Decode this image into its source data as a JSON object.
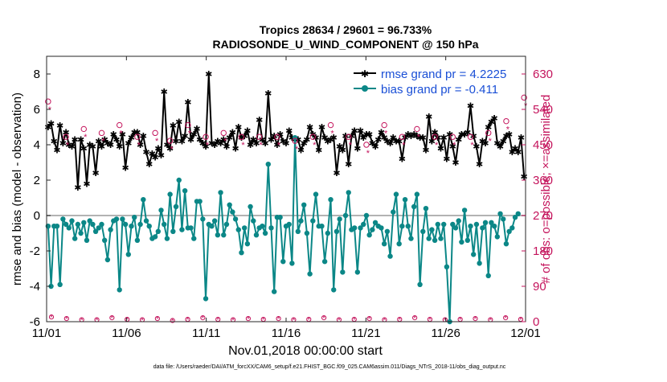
{
  "chart_data": {
    "type": "line",
    "title": "Tropics 28634 / 29601 = 96.733%",
    "subtitle": "RADIOSONDE_U_WIND_COMPONENT @ 150 hPa",
    "xlabel": "Nov.01,2018 00:00:00 start",
    "ylabel_left": "rmse and bias (model - observation)",
    "ylabel_right": "# of obs: o=possible; ×=assimilated",
    "footer": "data file: /Users/raeder/DAI/ATM_forcXX/CAM6_setup/f.e21.FHIST_BGC.f09_025.CAM6assim.011/Diags_NTrS_2018-11/obs_diag_output.nc",
    "xlim": [
      0,
      30
    ],
    "ylim_left": [
      -6,
      9
    ],
    "ylim_right": [
      0,
      675
    ],
    "x_ticks": [
      0,
      5,
      10,
      15,
      20,
      25,
      30
    ],
    "x_tick_labels": [
      "11/01",
      "11/06",
      "11/11",
      "11/16",
      "11/21",
      "11/26",
      "12/01"
    ],
    "y_ticks_left": [
      -6,
      -4,
      -2,
      0,
      2,
      4,
      6,
      8
    ],
    "y_tick_labels_left": [
      "-6",
      "-4",
      "-2",
      "0",
      "2",
      "4",
      "6",
      "8"
    ],
    "y_ticks_right": [
      0,
      90,
      180,
      270,
      360,
      450,
      540,
      630
    ],
    "y_tick_labels_right": [
      "0",
      "90",
      "180",
      "270",
      "360",
      "450",
      "540",
      "630"
    ],
    "legend": [
      {
        "name": "rmse grand pr = 4.2225",
        "color": "#000000"
      },
      {
        "name": "bias grand pr = -0.411",
        "color": "#0b8787"
      }
    ],
    "legend_position": "top-right",
    "series": [
      {
        "name": "rmse",
        "color": "#000000",
        "values": [
          5.0,
          5.2,
          4.2,
          3.7,
          5.1,
          4.1,
          4.7,
          4.0,
          3.9,
          4.3,
          1.6,
          4.3,
          3.8,
          1.8,
          4.0,
          3.9,
          2.4,
          4.2,
          3.9,
          4.3,
          4.1,
          4.0,
          4.6,
          4.3,
          3.9,
          4.6,
          2.7,
          4.1,
          4.4,
          4.7,
          4.7,
          4.0,
          4.5,
          3.6,
          2.9,
          3.5,
          3.3,
          3.8,
          3.4,
          7.0,
          4.0,
          3.8,
          5.1,
          4.2,
          5.3,
          4.2,
          4.5,
          6.4,
          4.3,
          4.6,
          4.9,
          4.3,
          4.1,
          3.9,
          8.0,
          4.1,
          4.0,
          4.2,
          4.1,
          4.3,
          3.9,
          4.4,
          4.7,
          3.8,
          5.0,
          4.4,
          4.5,
          4.8,
          4.0,
          4.3,
          4.1,
          5.4,
          4.3,
          4.1,
          6.9,
          4.3,
          4.5,
          4.0,
          4.6,
          4.2,
          4.1,
          4.8,
          4.4,
          4.3,
          4.3,
          3.7,
          4.1,
          4.3,
          5.0,
          4.6,
          4.4,
          3.7,
          5.0,
          4.4,
          4.2,
          4.3,
          4.4,
          2.4,
          3.9,
          3.7,
          4.5,
          2.9,
          4.5,
          4.8,
          3.8,
          4.8,
          4.4,
          4.6,
          4.6,
          4.1,
          3.9,
          4.3,
          4.7,
          4.4,
          4.2,
          4.1,
          4.4,
          4.2,
          4.2,
          3.2,
          4.4,
          4.6,
          4.5,
          4.6,
          4.5,
          4.4,
          4.4,
          3.7,
          5.6,
          4.2,
          4.7,
          4.4,
          3.8,
          4.4,
          3.2,
          4.6,
          3.9,
          3.0,
          4.3,
          4.6,
          4.6,
          4.7,
          6.2,
          4.5,
          3.9,
          2.9,
          4.2,
          4.1,
          5.0,
          5.3,
          5.5,
          4.1,
          3.9,
          4.2,
          4.5,
          4.6,
          3.6,
          3.8,
          3.6,
          4.4,
          2.2
        ]
      },
      {
        "name": "bias",
        "color": "#0b8787",
        "values": [
          -0.6,
          -4.0,
          -0.6,
          -0.6,
          -3.9,
          -0.2,
          -0.5,
          -0.7,
          -0.3,
          -1.3,
          -0.5,
          -1.0,
          -0.4,
          -1.4,
          -0.3,
          -0.5,
          -0.9,
          -0.7,
          -0.5,
          -1.4,
          -2.5,
          -0.8,
          -0.3,
          -0.2,
          -4.2,
          -0.2,
          -0.5,
          -2.2,
          -0.6,
          -0.1,
          -1.4,
          -0.5,
          0.9,
          -0.3,
          -0.6,
          -1.3,
          -1.2,
          -0.9,
          0.3,
          -0.5,
          -1.3,
          1.2,
          -0.9,
          0.5,
          2.0,
          -0.8,
          1.4,
          -0.7,
          -0.7,
          -1.3,
          0.8,
          0.8,
          -0.2,
          -4.7,
          -0.5,
          -0.6,
          -0.3,
          -1.1,
          1.3,
          -1.1,
          -0.5,
          0.6,
          0.2,
          -0.2,
          -0.8,
          -2.1,
          -0.7,
          -1.6,
          0.5,
          -0.3,
          -1.1,
          -0.7,
          -0.6,
          -1.0,
          2.9,
          -0.7,
          -4.3,
          -0.1,
          -0.1,
          -2.6,
          -0.6,
          -0.5,
          -2.7,
          4.4,
          -0.9,
          -0.3,
          0.6,
          -1.0,
          -3.3,
          -0.3,
          1.2,
          -0.6,
          -0.6,
          -2.6,
          -1.0,
          0.9,
          -4.2,
          -0.9,
          -0.2,
          -3.2,
          0.0,
          1.3,
          -0.8,
          -0.7,
          -3.2,
          -0.7,
          -0.5,
          0.0,
          -1.1,
          -0.8,
          -0.4,
          -0.6,
          -0.7,
          -1.6,
          -0.9,
          -2.3,
          0.2,
          1.2,
          -1.6,
          -0.6,
          0.9,
          -0.6,
          -1.3,
          0.5,
          1.2,
          -3.9,
          -0.9,
          0.4,
          -1.3,
          -0.8,
          -1.4,
          -0.5,
          -1.3,
          -0.5,
          -2.9,
          -6.0,
          -0.5,
          -0.7,
          -0.3,
          -1.5,
          0.3,
          -1.4,
          -0.6,
          -2.2,
          -0.5,
          -2.7,
          -0.7,
          -0.4,
          -3.4,
          -0.4,
          -0.6,
          -1.2,
          0.1,
          -0.2,
          -1.6,
          -0.9,
          -0.7,
          -0.1,
          0.1
        ]
      },
      {
        "name": "# of obs possible",
        "color": "#c4145c",
        "values": [
          560,
          530,
          440,
          460,
          520,
          480,
          470,
          480,
          500,
          500,
          510,
          500,
          490,
          470,
          470,
          520,
          530,
          510,
          480,
          450,
          470,
          480,
          470,
          470,
          500,
          470,
          490,
          470,
          460,
          510,
          470,
          500,
          480,
          500,
          440,
          390,
          480,
          480,
          470,
          470,
          530,
          460,
          510,
          480,
          470,
          470,
          520,
          500,
          460,
          470,
          500,
          500,
          480,
          470,
          420,
          470,
          520,
          470,
          520,
          480,
          460,
          470,
          480,
          480,
          470,
          470,
          470,
          470,
          470,
          500,
          470,
          470,
          540,
          500,
          520,
          480,
          480,
          470,
          460,
          500,
          470,
          450,
          500,
          460,
          470,
          480,
          470,
          450,
          460,
          470,
          500,
          500,
          470,
          470,
          480,
          500,
          480,
          480,
          500,
          470,
          490,
          470,
          470,
          470,
          490,
          470,
          460,
          450,
          470,
          520,
          470,
          470,
          470,
          500,
          470,
          460,
          470,
          460,
          470,
          470,
          470,
          470,
          470,
          470,
          490,
          540,
          490,
          470,
          470,
          510,
          470,
          470,
          470,
          460,
          460,
          490,
          470,
          480,
          470,
          470,
          470,
          470,
          470,
          540,
          470,
          500,
          460,
          470,
          480,
          490,
          510,
          510,
          470,
          470,
          510,
          470,
          500,
          520,
          470,
          470,
          570
        ]
      },
      {
        "name": "# of obs assimilated",
        "color": "#c4145c",
        "values": [
          540,
          510,
          420,
          440,
          500,
          460,
          450,
          460,
          480,
          480,
          490,
          480,
          470,
          450,
          450,
          500,
          510,
          490,
          460,
          430,
          450,
          460,
          450,
          450,
          480,
          450,
          470,
          450,
          440,
          490,
          450,
          480,
          460,
          480,
          420,
          370,
          460,
          460,
          450,
          450,
          510,
          440,
          490,
          460,
          450,
          450,
          500,
          480,
          440,
          450,
          480,
          480,
          460,
          450,
          400,
          450,
          500,
          450,
          500,
          460,
          440,
          450,
          460,
          460,
          450,
          450,
          450,
          450,
          450,
          480,
          450,
          450,
          520,
          480,
          500,
          460,
          460,
          450,
          440,
          480,
          450,
          430,
          480,
          440,
          450,
          460,
          450,
          430,
          440,
          450,
          480,
          480,
          450,
          450,
          460,
          480,
          460,
          460,
          480,
          450,
          470,
          450,
          450,
          450,
          470,
          450,
          440,
          430,
          450,
          500,
          450,
          450,
          450,
          480,
          450,
          440,
          450,
          440,
          450,
          450,
          450,
          450,
          450,
          450,
          470,
          520,
          470,
          450,
          450,
          490,
          450,
          450,
          450,
          440,
          440,
          470,
          450,
          460,
          450,
          450,
          450,
          450,
          450,
          520,
          450,
          480,
          440,
          450,
          460,
          470,
          490,
          490,
          450,
          450,
          490,
          450,
          480,
          500,
          450,
          450,
          550
        ]
      }
    ],
    "bottom_obs_values": [
      12,
      8,
      5,
      5,
      10,
      6,
      5,
      8,
      3,
      6,
      10,
      6,
      5,
      8,
      6,
      8,
      5,
      6,
      10,
      5,
      6,
      8,
      5,
      6,
      10,
      6,
      5,
      6,
      8,
      5,
      10,
      6
    ]
  }
}
